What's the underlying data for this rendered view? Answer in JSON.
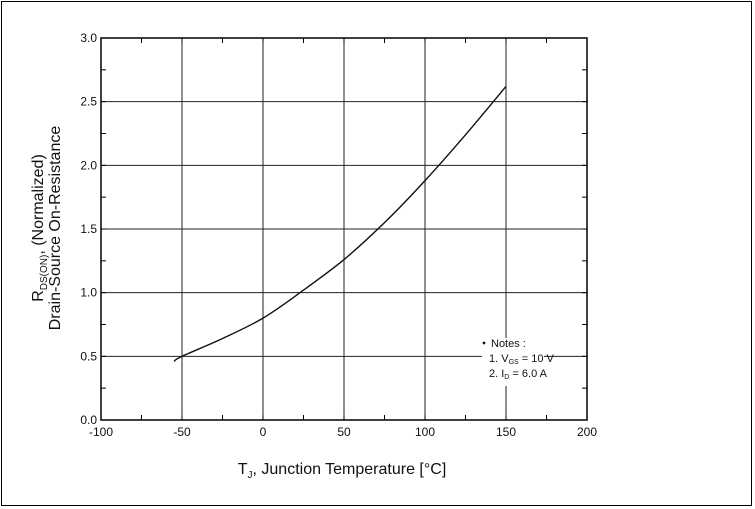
{
  "chart_data": {
    "type": "line",
    "xlabel": "T",
    "xlabel_sub": "J",
    "xlabel_rest": ", Junction Temperature [",
    "xlabel_unit": "°C]",
    "ylabel_line1_main": "R",
    "ylabel_line1_sub": "DS(ON)",
    "ylabel_line1_rest": ", (Normalized)",
    "ylabel_line2": "Drain-Source On-Resistance",
    "xlim": [
      -100,
      200
    ],
    "ylim": [
      0.0,
      3.0
    ],
    "x_ticks": [
      -100,
      -50,
      0,
      50,
      100,
      150,
      200
    ],
    "x_tick_labels": [
      "-100",
      "-50",
      "0",
      "50",
      "100",
      "150",
      "200"
    ],
    "y_ticks": [
      0.0,
      0.5,
      1.0,
      1.5,
      2.0,
      2.5,
      3.0
    ],
    "y_tick_labels": [
      "0.0",
      "0.5",
      "1.0",
      "1.5",
      "2.0",
      "2.5",
      "3.0"
    ],
    "grid": true,
    "series": [
      {
        "x": [
          -55,
          -50,
          -25,
          0,
          25,
          50,
          75,
          100,
          125,
          150
        ],
        "y": [
          0.46,
          0.5,
          0.64,
          0.8,
          1.02,
          1.26,
          1.55,
          1.88,
          2.24,
          2.62
        ]
      }
    ],
    "notes": {
      "title": "Notes :",
      "line1_prefix": "1. V",
      "line1_sub": "GS",
      "line1_rest": " = 10 V",
      "line2_prefix": "2. I",
      "line2_sub": "D",
      "line2_rest": " = 6.0 A"
    }
  }
}
